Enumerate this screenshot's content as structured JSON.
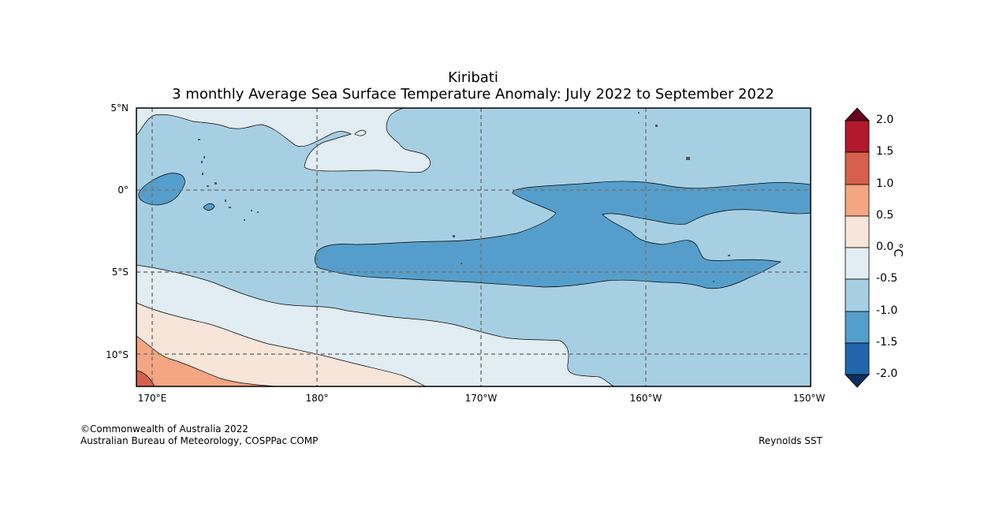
{
  "title": {
    "line1": "Kiribati",
    "line2": "3 monthly Average Sea Surface Temperature Anomaly: July 2022 to September 2022"
  },
  "lat_labels": [
    "5°N",
    "0°",
    "5°S",
    "10°S"
  ],
  "lon_labels": [
    "170°E",
    "180°",
    "170°W",
    "160°W",
    "150°W"
  ],
  "colorbar": {
    "labels": [
      "2.0",
      "1.5",
      "1.0",
      "0.5",
      "0.0",
      "-0.5",
      "-1.0",
      "-1.5",
      "-2.0"
    ],
    "unit": "°C",
    "colors": {
      "over": "#67001f",
      "1.5_2.0": "#b2182b",
      "1.0_1.5": "#d6604d",
      "0.5_1.0": "#f4a582",
      "0.0_0.5": "#f8e5da",
      "neg0.5_0.0": "#e1ecf3",
      "neg1.0_neg0.5": "#a7cfe3",
      "neg1.5_neg1.0": "#559ecb",
      "neg2.0_neg1.5": "#2166ac",
      "under": "#0c2f5e"
    }
  },
  "credits": {
    "copyright": "©Commonwealth of Australia 2022",
    "agency": "Australian Bureau of Meteorology, COSPPac COMP",
    "source": "Reynolds SST"
  }
}
